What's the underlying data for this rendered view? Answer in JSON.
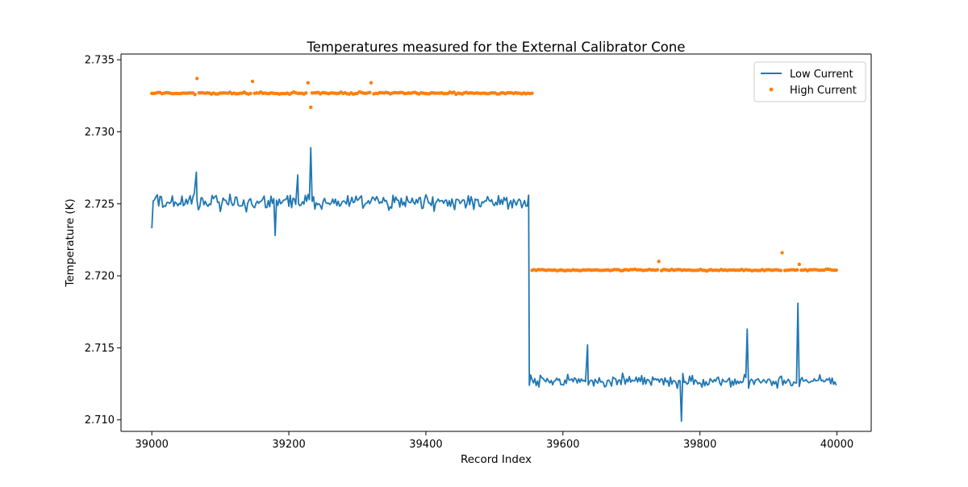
{
  "chart_data": {
    "type": "line+scatter",
    "title": "Temperatures measured for the External Calibrator Cone",
    "xlabel": "Record Index",
    "ylabel": "Temperature (K)",
    "xlim": [
      38955,
      40050
    ],
    "ylim": [
      2.7092,
      2.7354
    ],
    "x_ticks": [
      39000,
      39200,
      39400,
      39600,
      39800,
      40000
    ],
    "x_tick_labels": [
      "39000",
      "39200",
      "39400",
      "39600",
      "39800",
      "40000"
    ],
    "y_ticks": [
      2.71,
      2.715,
      2.72,
      2.725,
      2.73,
      2.735
    ],
    "y_tick_labels": [
      "2.710",
      "2.715",
      "2.720",
      "2.725",
      "2.730",
      "2.735"
    ],
    "legend_position": "top-right",
    "series": [
      {
        "name": "Low Current",
        "kind": "line",
        "color": "#1f77b4",
        "x_start": 39000,
        "x_end": 39999,
        "segments": [
          {
            "x_from": 39000,
            "x_to": 39550,
            "baseline": 2.7251,
            "noise": 0.0008
          },
          {
            "x_from": 39551,
            "x_to": 39999,
            "baseline": 2.7127,
            "noise": 0.0006
          }
        ],
        "notable_points": [
          {
            "x": 39000,
            "y": 2.7233
          },
          {
            "x": 39065,
            "y": 2.7272
          },
          {
            "x": 39180,
            "y": 2.7228
          },
          {
            "x": 39213,
            "y": 2.727
          },
          {
            "x": 39232,
            "y": 2.7289
          },
          {
            "x": 39550,
            "y": 2.7256
          },
          {
            "x": 39551,
            "y": 2.7124
          },
          {
            "x": 39636,
            "y": 2.7152
          },
          {
            "x": 39773,
            "y": 2.7099
          },
          {
            "x": 39869,
            "y": 2.7163
          },
          {
            "x": 39943,
            "y": 2.7181
          },
          {
            "x": 39999,
            "y": 2.7124
          }
        ]
      },
      {
        "name": "High Current",
        "kind": "scatter",
        "color": "#ff7f0e",
        "x_start": 39000,
        "x_end": 39999,
        "segments": [
          {
            "x_from": 39000,
            "x_to": 39555,
            "baseline": 2.73268,
            "noise": 0.0001
          },
          {
            "x_from": 39555,
            "x_to": 39999,
            "baseline": 2.7204,
            "noise": 8e-05
          }
        ],
        "notable_points": [
          {
            "x": 39065,
            "y": 2.734
          },
          {
            "x": 39066,
            "y": 2.7337
          },
          {
            "x": 39147,
            "y": 2.7335
          },
          {
            "x": 39228,
            "y": 2.7334
          },
          {
            "x": 39232,
            "y": 2.7317
          },
          {
            "x": 39320,
            "y": 2.7334
          },
          {
            "x": 39740,
            "y": 2.721
          },
          {
            "x": 39920,
            "y": 2.7216
          },
          {
            "x": 39945,
            "y": 2.7208
          }
        ]
      }
    ]
  }
}
